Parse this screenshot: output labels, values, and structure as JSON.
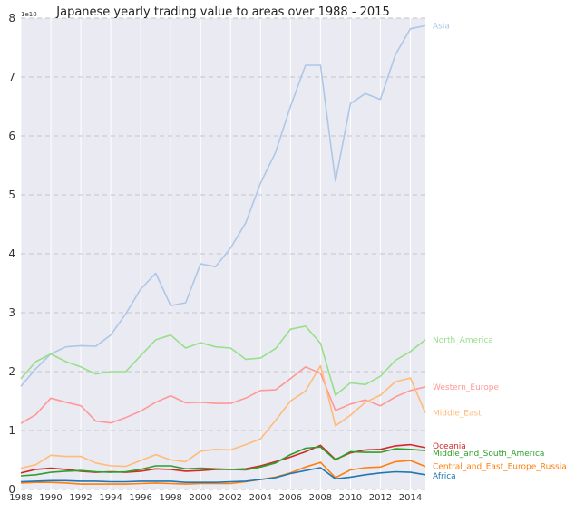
{
  "chart_data": {
    "type": "line",
    "title": "Japanese yearly trading value to areas over 1988 - 2015",
    "xlabel": "",
    "ylabel": "",
    "y_multiplier_label": "1e10",
    "xlim": [
      1988,
      2015
    ],
    "ylim": [
      0,
      8
    ],
    "x_ticks": [
      "1988",
      "1990",
      "1992",
      "1994",
      "1996",
      "1998",
      "2000",
      "2002",
      "2004",
      "2006",
      "2008",
      "2010",
      "2012",
      "2014"
    ],
    "y_ticks": [
      "0",
      "1",
      "2",
      "3",
      "4",
      "5",
      "6",
      "7",
      "8"
    ],
    "grid": true,
    "legend_placement": "right-end-labels",
    "x": [
      1988,
      1989,
      1990,
      1991,
      1992,
      1993,
      1994,
      1995,
      1996,
      1997,
      1998,
      1999,
      2000,
      2001,
      2002,
      2003,
      2004,
      2005,
      2006,
      2007,
      2008,
      2009,
      2010,
      2011,
      2012,
      2013,
      2014,
      2015
    ],
    "series": [
      {
        "name": "Asia",
        "color": "#aec7e8",
        "values": [
          1.75,
          2.05,
          2.3,
          2.42,
          2.44,
          2.43,
          2.62,
          2.98,
          3.4,
          3.67,
          3.12,
          3.17,
          3.83,
          3.78,
          4.1,
          4.52,
          5.2,
          5.72,
          6.5,
          7.2,
          7.2,
          5.23,
          6.55,
          6.72,
          6.62,
          7.38,
          7.82,
          7.87
        ]
      },
      {
        "name": "North_America",
        "color": "#98df8a",
        "values": [
          1.88,
          2.17,
          2.3,
          2.17,
          2.08,
          1.96,
          2.0,
          2.0,
          2.27,
          2.54,
          2.62,
          2.4,
          2.49,
          2.42,
          2.4,
          2.21,
          2.23,
          2.39,
          2.72,
          2.77,
          2.48,
          1.6,
          1.81,
          1.78,
          1.92,
          2.19,
          2.34,
          2.54
        ]
      },
      {
        "name": "Western_Europe",
        "color": "#ff9896",
        "values": [
          1.12,
          1.27,
          1.55,
          1.48,
          1.42,
          1.16,
          1.13,
          1.22,
          1.33,
          1.48,
          1.59,
          1.47,
          1.48,
          1.46,
          1.46,
          1.55,
          1.68,
          1.69,
          1.88,
          2.08,
          1.97,
          1.34,
          1.45,
          1.52,
          1.42,
          1.57,
          1.68,
          1.74
        ]
      },
      {
        "name": "Middle_East",
        "color": "#ffbb78",
        "values": [
          0.36,
          0.42,
          0.58,
          0.56,
          0.56,
          0.45,
          0.4,
          0.39,
          0.49,
          0.59,
          0.5,
          0.47,
          0.65,
          0.68,
          0.67,
          0.76,
          0.86,
          1.17,
          1.5,
          1.67,
          2.1,
          1.08,
          1.26,
          1.48,
          1.6,
          1.83,
          1.89,
          1.3
        ]
      },
      {
        "name": "Oceania",
        "color": "#d62728",
        "values": [
          0.28,
          0.34,
          0.36,
          0.34,
          0.31,
          0.29,
          0.3,
          0.29,
          0.31,
          0.35,
          0.34,
          0.31,
          0.32,
          0.34,
          0.34,
          0.35,
          0.4,
          0.47,
          0.55,
          0.64,
          0.75,
          0.51,
          0.62,
          0.67,
          0.68,
          0.74,
          0.76,
          0.71
        ]
      },
      {
        "name": "Middle_and_South_America",
        "color": "#2ca02c",
        "values": [
          0.23,
          0.25,
          0.29,
          0.31,
          0.32,
          0.3,
          0.29,
          0.3,
          0.34,
          0.4,
          0.4,
          0.35,
          0.36,
          0.35,
          0.34,
          0.33,
          0.38,
          0.45,
          0.59,
          0.7,
          0.72,
          0.5,
          0.64,
          0.63,
          0.63,
          0.69,
          0.68,
          0.66
        ]
      },
      {
        "name": "Central_and_East_Europe_Russia",
        "color": "#ff7f0e",
        "values": [
          0.11,
          0.12,
          0.12,
          0.11,
          0.09,
          0.09,
          0.09,
          0.09,
          0.1,
          0.11,
          0.1,
          0.09,
          0.1,
          0.1,
          0.1,
          0.13,
          0.17,
          0.21,
          0.28,
          0.38,
          0.46,
          0.2,
          0.33,
          0.37,
          0.38,
          0.47,
          0.49,
          0.39
        ]
      },
      {
        "name": "Africa",
        "color": "#1f77b4",
        "values": [
          0.13,
          0.14,
          0.15,
          0.15,
          0.14,
          0.14,
          0.13,
          0.13,
          0.14,
          0.14,
          0.14,
          0.12,
          0.12,
          0.12,
          0.13,
          0.14,
          0.17,
          0.2,
          0.27,
          0.32,
          0.37,
          0.18,
          0.21,
          0.25,
          0.28,
          0.3,
          0.29,
          0.25
        ]
      }
    ]
  }
}
